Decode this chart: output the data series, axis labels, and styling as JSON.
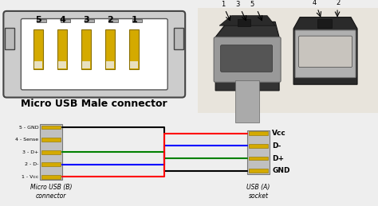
{
  "bg_color": "#eeeeee",
  "title": "Micro USB Male connector",
  "pin_labels": [
    "5",
    "4",
    "3",
    "2",
    "1"
  ],
  "left_labels": [
    "5 - GND",
    "4 - Sense",
    "3 - D+",
    "2 - D-",
    "1 - Vcc"
  ],
  "right_labels": [
    "Vcc",
    "D-",
    "D+",
    "GND"
  ],
  "connector_left_label": "Micro USB (B)\nconnector",
  "connector_right_label": "USB (A)\nsocket",
  "photo_bg": "#d8d4cc",
  "pin_color": "#d4aa00",
  "pin_edge": "#8b7000",
  "body_dark": "#2a2a2a",
  "body_mid": "#555555",
  "body_light": "#888888",
  "connector_gray": "#c0c0c0",
  "wire_routes": [
    [
      0,
      3,
      "black"
    ],
    [
      2,
      2,
      "green"
    ],
    [
      3,
      1,
      "blue"
    ],
    [
      4,
      0,
      "red"
    ]
  ]
}
